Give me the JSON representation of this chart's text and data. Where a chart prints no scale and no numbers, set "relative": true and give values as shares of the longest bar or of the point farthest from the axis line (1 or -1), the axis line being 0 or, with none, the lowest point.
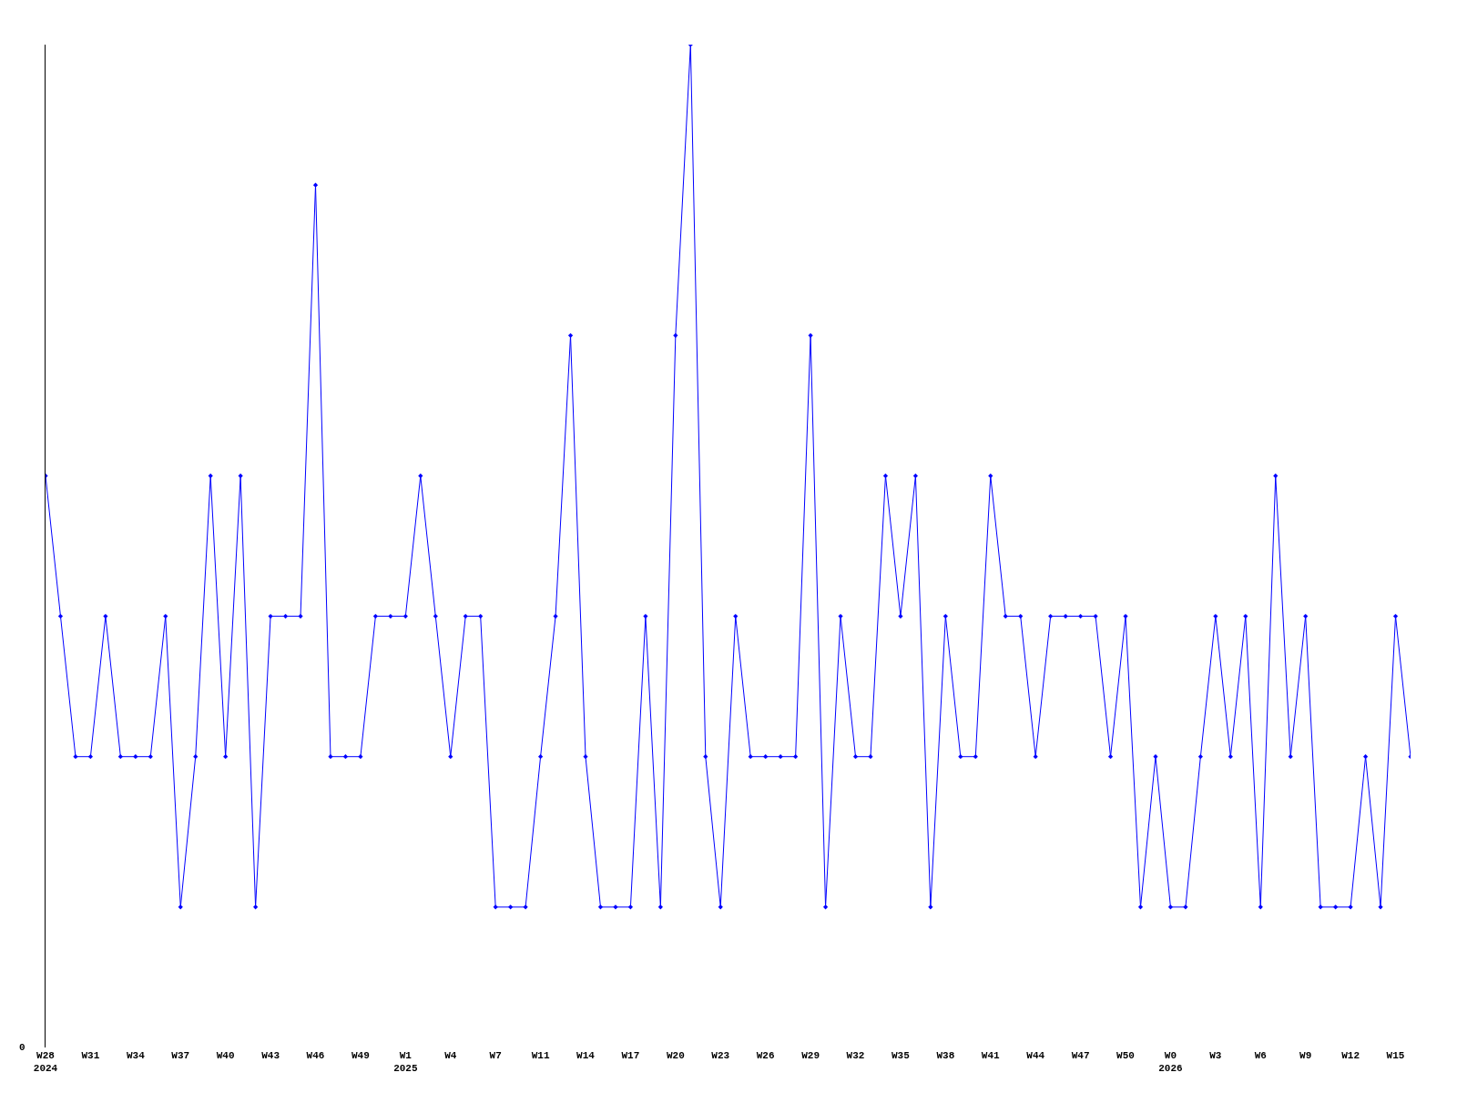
{
  "chart_data": {
    "type": "line",
    "relative": true,
    "marker": "diamond",
    "line_style": "solid",
    "categories": [
      "W28\n2024",
      null,
      null,
      "W31",
      null,
      null,
      "W34",
      null,
      null,
      "W37",
      null,
      null,
      "W40",
      null,
      null,
      "W43",
      null,
      null,
      "W46",
      null,
      null,
      "W49",
      null,
      null,
      "W1\n2025",
      null,
      null,
      "W4",
      null,
      null,
      "W7",
      null,
      null,
      "W11",
      null,
      null,
      "W14",
      null,
      null,
      "W17",
      null,
      null,
      "W20",
      null,
      null,
      "W23",
      null,
      null,
      "W26",
      null,
      null,
      "W29",
      null,
      null,
      "W32",
      null,
      null,
      "W35",
      null,
      null,
      "W38",
      null,
      null,
      "W41",
      null,
      null,
      "W44",
      null,
      null,
      "W47",
      null,
      null,
      "W50",
      null,
      null,
      "W0\n2026",
      null,
      null,
      "W3",
      null,
      null,
      "W6",
      null,
      null,
      "W9",
      null,
      null,
      "W12",
      null,
      null,
      "W15",
      null
    ],
    "series": [
      {
        "color": "#0000ff",
        "values": [
          0.57,
          0.43,
          0.29,
          0.29,
          0.43,
          0.29,
          0.29,
          0.29,
          0.43,
          0.14,
          0.29,
          0.57,
          0.29,
          0.57,
          0.14,
          0.43,
          0.43,
          0.43,
          0.86,
          0.29,
          0.29,
          0.29,
          0.43,
          0.43,
          0.43,
          0.57,
          0.43,
          0.29,
          0.43,
          0.43,
          0.14,
          0.14,
          0.14,
          0.29,
          0.43,
          0.71,
          0.29,
          0.14,
          0.14,
          0.14,
          0.43,
          0.14,
          0.71,
          1,
          0.29,
          0.14,
          0.43,
          0.29,
          0.29,
          0.29,
          0.29,
          0.71,
          0.14,
          0.43,
          0.29,
          0.29,
          0.57,
          0.43,
          0.57,
          0.14,
          0.43,
          0.29,
          0.29,
          0.57,
          0.43,
          0.43,
          0.29,
          0.43,
          0.43,
          0.43,
          0.43,
          0.29,
          0.43,
          0.14,
          0.29,
          0.14,
          0.14,
          0.29,
          0.43,
          0.29,
          0.43,
          0.14,
          0.57,
          0.29,
          0.43,
          0.14,
          0.14,
          0.14,
          0.29,
          0.14,
          0.43,
          0.29
        ]
      }
    ],
    "annotations": [
      "0"
    ]
  }
}
